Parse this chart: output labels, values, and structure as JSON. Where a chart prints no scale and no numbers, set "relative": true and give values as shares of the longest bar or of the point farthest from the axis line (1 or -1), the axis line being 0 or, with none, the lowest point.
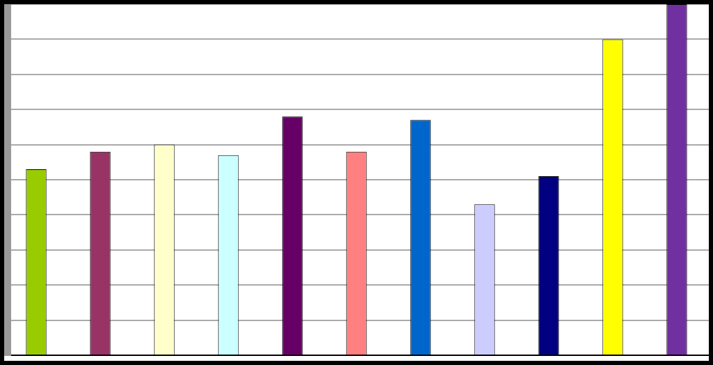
{
  "chart_data": {
    "type": "bar",
    "relative": true,
    "grid": "y",
    "categories": [
      null,
      null,
      null,
      null,
      null,
      null,
      null,
      null,
      null,
      null,
      null
    ],
    "values": [
      0.53,
      0.58,
      0.6,
      0.57,
      0.68,
      0.58,
      0.67,
      0.43,
      0.51,
      0.9,
      1
    ],
    "colors": [
      "#99cc00",
      "#993366",
      "#ffffcc",
      "#ccffff",
      "#660066",
      "#ff8080",
      "#0066cc",
      "#ccccff",
      "#000080",
      "#ffff00",
      "#7030a0"
    ]
  }
}
